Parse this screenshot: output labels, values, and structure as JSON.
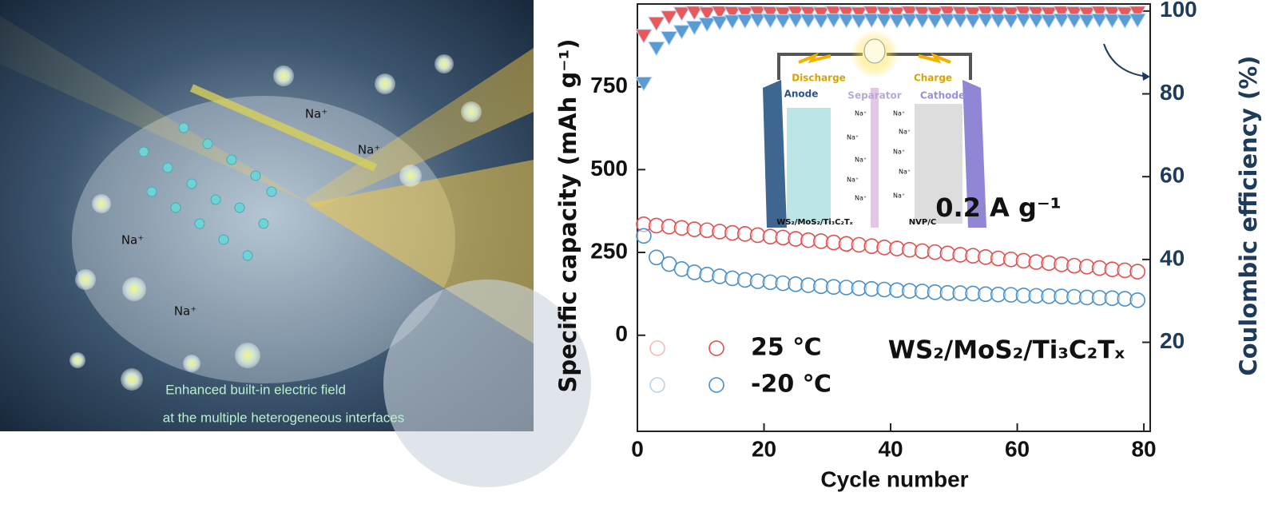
{
  "illustration": {
    "ion_label": "Na⁺",
    "caption_line1": "Enhanced built-in electric field",
    "caption_line2": "at the multiple heterogeneous interfaces"
  },
  "chart_data": {
    "type": "scatter",
    "x_label": "Cycle number",
    "y_label": "Specific capacity (mAh g⁻¹)",
    "y2_label": "Coulombic efficiency (%)",
    "annotations": [
      "0.2 A g⁻¹",
      "WS₂/MoS₂/Ti₃C₂Tₓ"
    ],
    "inset": {
      "discharge": "Discharge",
      "charge": "Charge",
      "anode": "Anode",
      "separator": "Separator",
      "cathode": "Cathode",
      "anode_material": "WS₂/MoS₂/Ti₃C₂Tₓ",
      "cathode_material": "NVP/C",
      "ion": "Na⁺"
    },
    "xlim": [
      0,
      81
    ],
    "xticks": [
      0,
      20,
      40,
      60,
      80
    ],
    "ylim": [
      -290,
      1000
    ],
    "yticks": [
      0,
      250,
      500,
      750
    ],
    "y2lim": [
      -1.5,
      101.7
    ],
    "y2ticks": [
      20,
      40,
      60,
      80,
      100
    ],
    "x": [
      1,
      3,
      5,
      7,
      9,
      11,
      13,
      15,
      17,
      19,
      21,
      23,
      25,
      27,
      29,
      31,
      33,
      35,
      37,
      39,
      41,
      43,
      45,
      47,
      49,
      51,
      53,
      55,
      57,
      59,
      61,
      63,
      65,
      67,
      69,
      71,
      73,
      75,
      77,
      79
    ],
    "series": [
      {
        "name": "25 ℃",
        "color": "#e05050",
        "marker": "circle",
        "values": [
          335,
          331,
          328,
          324,
          320,
          317,
          313,
          309,
          306,
          302,
          298,
          295,
          291,
          287,
          284,
          280,
          276,
          273,
          269,
          265,
          262,
          258,
          254,
          251,
          247,
          243,
          240,
          236,
          232,
          229,
          225,
          221,
          218,
          214,
          210,
          207,
          203,
          199,
          196,
          192
        ]
      },
      {
        "name": "-20 ℃",
        "color": "#4a90c8",
        "marker": "circle",
        "values": [
          300,
          235,
          215,
          200,
          190,
          183,
          178,
          172,
          167,
          163,
          160,
          157,
          154,
          151,
          148,
          146,
          144,
          142,
          140,
          138,
          136,
          134,
          132,
          130,
          128,
          127,
          126,
          124,
          123,
          122,
          120,
          119,
          118,
          117,
          116,
          114,
          113,
          112,
          110,
          106
        ]
      },
      {
        "axis": "y2",
        "color": "#e85a5a",
        "marker": "triangle-down",
        "values": [
          94,
          97,
          98.5,
          99.4,
          99.6,
          99.4,
          99.6,
          99.5,
          99.4,
          99.6,
          99.5,
          99.4,
          99.6,
          99.5,
          99.4,
          99.6,
          99.5,
          99.4,
          99.6,
          99.5,
          99.4,
          99.6,
          99.5,
          99.4,
          99.6,
          99.5,
          99.4,
          99.6,
          99.5,
          99.4,
          99.6,
          99.5,
          99.4,
          99.6,
          99.5,
          99.4,
          99.6,
          99.5,
          99.4,
          99.6
        ]
      },
      {
        "axis": "y2",
        "color": "#5b9bd5",
        "marker": "triangle-down",
        "values": [
          82.5,
          91,
          93.5,
          95,
          96,
          96.8,
          97.2,
          97.5,
          97.6,
          97.8,
          97.7,
          97.6,
          97.8,
          97.7,
          97.6,
          97.8,
          97.7,
          97.6,
          97.8,
          97.7,
          97.6,
          97.8,
          97.7,
          97.6,
          97.8,
          97.7,
          97.6,
          97.8,
          97.7,
          97.6,
          97.8,
          97.7,
          97.6,
          97.8,
          97.7,
          97.6,
          97.8,
          97.7,
          97.6,
          97.8
        ]
      }
    ]
  }
}
